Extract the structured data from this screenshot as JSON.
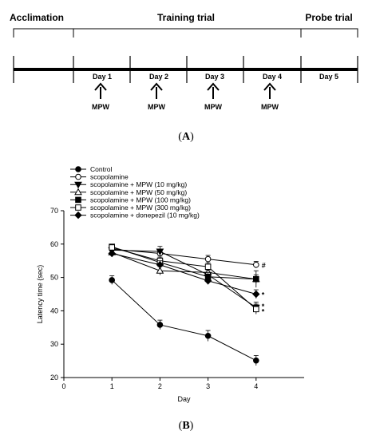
{
  "timeline": {
    "phases": [
      "Acclimation",
      "Training trial",
      "Probe trial"
    ],
    "days": [
      "Day 1",
      "Day 2",
      "Day 3",
      "Day 4",
      "Day 5"
    ],
    "treatment_label": "MPW",
    "panel_label_open": "(",
    "panel_label_letter": "A",
    "panel_label_close": ")"
  },
  "panel_b": {
    "open": "(",
    "letter": "B",
    "close": ")"
  },
  "chart_data": {
    "type": "line",
    "xlabel": "Day",
    "ylabel": "Latency time (sec)",
    "xlim": [
      0,
      5
    ],
    "ylim": [
      20,
      70
    ],
    "xticks": [
      0,
      1,
      2,
      3,
      4
    ],
    "yticks": [
      20,
      30,
      40,
      50,
      60,
      70
    ],
    "x": [
      1,
      2,
      3,
      4
    ],
    "legend_position": "top-left",
    "series": [
      {
        "name": "Control",
        "marker": "circle-filled",
        "values": [
          49.2,
          35.8,
          32.5,
          25.1
        ],
        "err": [
          1.3,
          1.4,
          1.6,
          1.5
        ]
      },
      {
        "name": "scopolamine",
        "marker": "circle-open",
        "values": [
          58.5,
          57.2,
          55.5,
          53.8
        ],
        "err": [
          0.8,
          0.9,
          1.1,
          1.0
        ]
      },
      {
        "name": "scopolamine + MPW (10 mg/kg)",
        "marker": "triangle-down-filled",
        "values": [
          58.2,
          57.8,
          50.8,
          41.0
        ],
        "err": [
          0.9,
          1.5,
          1.3,
          1.6
        ]
      },
      {
        "name": "scopolamine + MPW (50 mg/kg)",
        "marker": "triangle-up-open",
        "values": [
          57.5,
          52.0,
          51.5,
          49.5
        ],
        "err": [
          0.8,
          1.3,
          1.2,
          1.3
        ]
      },
      {
        "name": "scopolamine + MPW (100 mg/kg)",
        "marker": "square-filled",
        "values": [
          59.2,
          54.5,
          50.2,
          49.5
        ],
        "err": [
          0.7,
          1.2,
          1.3,
          2.5
        ]
      },
      {
        "name": "scopolamine + MPW (300 mg/kg)",
        "marker": "square-open",
        "values": [
          59.0,
          55.0,
          53.2,
          40.5
        ],
        "err": [
          0.6,
          1.1,
          1.2,
          1.5
        ]
      },
      {
        "name": "scopolamine + donepezil (10 mg/kg)",
        "marker": "diamond-filled",
        "values": [
          57.2,
          53.8,
          49.0,
          45.0
        ],
        "err": [
          0.8,
          1.2,
          1.1,
          1.3
        ]
      }
    ],
    "annotations": [
      {
        "text": "#",
        "x": 4,
        "y": 53.8
      },
      {
        "text": "*",
        "x": 4,
        "y": 45.0
      },
      {
        "text": "*",
        "x": 4,
        "y": 41.5
      },
      {
        "text": "*",
        "x": 4,
        "y": 40.0
      }
    ]
  }
}
